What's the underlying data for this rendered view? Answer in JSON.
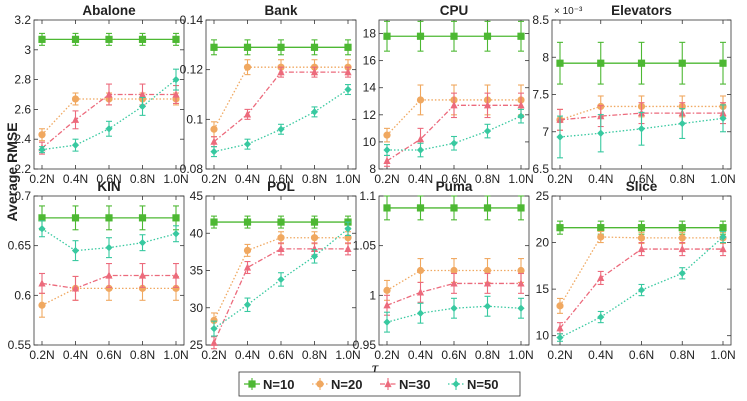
{
  "figure": {
    "ylabel": "Average RMSE",
    "xlabel": "τ",
    "legend_position": "bottom-center",
    "legend": [
      {
        "name": "N=10",
        "color": "#4db833",
        "marker": "square"
      },
      {
        "name": "N=20",
        "color": "#f0a860",
        "marker": "circle"
      },
      {
        "name": "N=30",
        "color": "#ec6a7c",
        "marker": "triangle"
      },
      {
        "name": "N=50",
        "color": "#38c9a0",
        "marker": "diamond"
      }
    ]
  },
  "chart_data": [
    {
      "type": "line",
      "title": "Abalone",
      "categories": [
        "0.2N",
        "0.4N",
        "0.6N",
        "0.8N",
        "1.0N"
      ],
      "ylim": [
        2.2,
        3.2
      ],
      "yticks": [
        "2.2",
        "2.4",
        "2.6",
        "2.8",
        "3",
        "3.2"
      ],
      "ytick_values": [
        2.2,
        2.4,
        2.6,
        2.8,
        3.0,
        3.2
      ],
      "series": [
        {
          "name": "N=10",
          "values": [
            3.07,
            3.07,
            3.07,
            3.07,
            3.07
          ],
          "err": [
            0.04,
            0.04,
            0.04,
            0.04,
            0.04
          ]
        },
        {
          "name": "N=20",
          "values": [
            2.43,
            2.67,
            2.67,
            2.67,
            2.67
          ],
          "err": [
            0.04,
            0.04,
            0.04,
            0.04,
            0.04
          ]
        },
        {
          "name": "N=30",
          "values": [
            2.34,
            2.53,
            2.7,
            2.7,
            2.7
          ],
          "err": [
            0.04,
            0.06,
            0.07,
            0.07,
            0.06
          ]
        },
        {
          "name": "N=50",
          "values": [
            2.33,
            2.36,
            2.47,
            2.62,
            2.8
          ],
          "err": [
            0.02,
            0.04,
            0.05,
            0.06,
            0.07
          ]
        }
      ]
    },
    {
      "type": "line",
      "title": "Bank",
      "categories": [
        "0.2N",
        "0.4N",
        "0.6N",
        "0.8N",
        "1.0N"
      ],
      "ylim": [
        0.08,
        0.14
      ],
      "yticks": [
        "0.08",
        "0.1",
        "0.12",
        "0.14"
      ],
      "ytick_values": [
        0.08,
        0.1,
        0.12,
        0.14
      ],
      "series": [
        {
          "name": "N=10",
          "values": [
            0.129,
            0.129,
            0.129,
            0.129,
            0.129
          ],
          "err": [
            0.003,
            0.003,
            0.003,
            0.003,
            0.003
          ]
        },
        {
          "name": "N=20",
          "values": [
            0.096,
            0.121,
            0.121,
            0.121,
            0.121
          ],
          "err": [
            0.003,
            0.003,
            0.003,
            0.003,
            0.003
          ]
        },
        {
          "name": "N=30",
          "values": [
            0.091,
            0.102,
            0.119,
            0.119,
            0.119
          ],
          "err": [
            0.002,
            0.002,
            0.002,
            0.002,
            0.002
          ]
        },
        {
          "name": "N=50",
          "values": [
            0.087,
            0.09,
            0.096,
            0.103,
            0.112
          ],
          "err": [
            0.002,
            0.002,
            0.002,
            0.002,
            0.002
          ]
        }
      ]
    },
    {
      "type": "line",
      "title": "CPU",
      "categories": [
        "0.2N",
        "0.4N",
        "0.6N",
        "0.8N",
        "1.0N"
      ],
      "ylim": [
        8,
        19
      ],
      "yticks": [
        "8",
        "10",
        "12",
        "14",
        "16",
        "18"
      ],
      "ytick_values": [
        8,
        10,
        12,
        14,
        16,
        18
      ],
      "series": [
        {
          "name": "N=10",
          "values": [
            17.8,
            17.8,
            17.8,
            17.8,
            17.8
          ],
          "err": [
            1.1,
            1.1,
            1.1,
            1.1,
            1.1
          ]
        },
        {
          "name": "N=20",
          "values": [
            10.5,
            13.1,
            13.1,
            13.1,
            13.1
          ],
          "err": [
            0.5,
            1.1,
            1.1,
            1.1,
            1.1
          ]
        },
        {
          "name": "N=30",
          "values": [
            8.6,
            10.2,
            12.7,
            12.7,
            12.7
          ],
          "err": [
            0.4,
            0.8,
            0.9,
            0.9,
            0.9
          ]
        },
        {
          "name": "N=50",
          "values": [
            9.4,
            9.4,
            9.9,
            10.8,
            11.9
          ],
          "err": [
            0.4,
            0.5,
            0.5,
            0.5,
            0.5
          ]
        }
      ]
    },
    {
      "type": "line",
      "title": "Elevators",
      "exponent_label": "× 10⁻³",
      "categories": [
        "0.2N",
        "0.4N",
        "0.6N",
        "0.8N",
        "1.0N"
      ],
      "ylim": [
        6.5,
        8.5
      ],
      "yticks": [
        "6.5",
        "7",
        "7.5",
        "8",
        "8.5"
      ],
      "ytick_values": [
        6.5,
        7.0,
        7.5,
        8.0,
        8.5
      ],
      "series": [
        {
          "name": "N=10",
          "values": [
            7.92,
            7.92,
            7.92,
            7.92,
            7.92
          ],
          "err": [
            0.28,
            0.28,
            0.28,
            0.28,
            0.28
          ]
        },
        {
          "name": "N=20",
          "values": [
            7.16,
            7.34,
            7.34,
            7.34,
            7.34
          ],
          "err": [
            0.14,
            0.14,
            0.14,
            0.14,
            0.14
          ]
        },
        {
          "name": "N=30",
          "values": [
            7.16,
            7.21,
            7.25,
            7.25,
            7.25
          ],
          "err": [
            0.14,
            0.14,
            0.14,
            0.14,
            0.14
          ]
        },
        {
          "name": "N=50",
          "values": [
            6.93,
            6.98,
            7.04,
            7.11,
            7.18
          ],
          "err": [
            0.28,
            0.25,
            0.22,
            0.2,
            0.18
          ]
        }
      ]
    },
    {
      "type": "line",
      "title": "KIN",
      "categories": [
        "0.2N",
        "0.4N",
        "0.6N",
        "0.8N",
        "1.0N"
      ],
      "ylim": [
        0.55,
        0.7
      ],
      "yticks": [
        "0.55",
        "0.6",
        "0.65",
        "0.7"
      ],
      "ytick_values": [
        0.55,
        0.6,
        0.65,
        0.7
      ],
      "series": [
        {
          "name": "N=10",
          "values": [
            0.678,
            0.678,
            0.678,
            0.678,
            0.678
          ],
          "err": [
            0.012,
            0.012,
            0.012,
            0.012,
            0.012
          ]
        },
        {
          "name": "N=20",
          "values": [
            0.59,
            0.607,
            0.607,
            0.607,
            0.607
          ],
          "err": [
            0.012,
            0.012,
            0.012,
            0.012,
            0.012
          ]
        },
        {
          "name": "N=30",
          "values": [
            0.612,
            0.607,
            0.62,
            0.62,
            0.62
          ],
          "err": [
            0.01,
            0.012,
            0.012,
            0.012,
            0.012
          ]
        },
        {
          "name": "N=50",
          "values": [
            0.667,
            0.645,
            0.648,
            0.653,
            0.662
          ],
          "err": [
            0.008,
            0.01,
            0.01,
            0.008,
            0.008
          ]
        }
      ]
    },
    {
      "type": "line",
      "title": "POL",
      "categories": [
        "0.2N",
        "0.4N",
        "0.6N",
        "0.8N",
        "1.0N"
      ],
      "ylim": [
        25,
        45
      ],
      "yticks": [
        "25",
        "30",
        "35",
        "40",
        "45"
      ],
      "ytick_values": [
        25,
        30,
        35,
        40,
        45
      ],
      "series": [
        {
          "name": "N=10",
          "values": [
            41.5,
            41.5,
            41.5,
            41.5,
            41.5
          ],
          "err": [
            0.8,
            0.8,
            0.8,
            0.8,
            0.8
          ]
        },
        {
          "name": "N=20",
          "values": [
            28.3,
            37.7,
            39.4,
            39.4,
            39.4
          ],
          "err": [
            1.0,
            0.8,
            0.8,
            0.8,
            0.8
          ]
        },
        {
          "name": "N=30",
          "values": [
            25.3,
            35.4,
            37.9,
            37.9,
            37.9
          ],
          "err": [
            0.8,
            0.8,
            0.8,
            0.8,
            0.8
          ]
        },
        {
          "name": "N=50",
          "values": [
            27.2,
            30.4,
            33.8,
            36.9,
            40.6
          ],
          "err": [
            1.0,
            0.9,
            0.9,
            0.9,
            0.9
          ]
        }
      ]
    },
    {
      "type": "line",
      "title": "Puma",
      "categories": [
        "0.2N",
        "0.4N",
        "0.6N",
        "0.8N",
        "1.0N"
      ],
      "ylim": [
        0.95,
        1.1
      ],
      "yticks": [
        "0.95",
        "1",
        "1.05",
        "1.1"
      ],
      "ytick_values": [
        0.95,
        1.0,
        1.05,
        1.1
      ],
      "series": [
        {
          "name": "N=10",
          "values": [
            1.088,
            1.088,
            1.088,
            1.088,
            1.088
          ],
          "err": [
            0.012,
            0.012,
            0.012,
            0.012,
            0.012
          ]
        },
        {
          "name": "N=20",
          "values": [
            1.005,
            1.025,
            1.025,
            1.025,
            1.025
          ],
          "err": [
            0.01,
            0.012,
            0.012,
            0.012,
            0.012
          ]
        },
        {
          "name": "N=30",
          "values": [
            0.99,
            1.003,
            1.012,
            1.012,
            1.012
          ],
          "err": [
            0.01,
            0.01,
            0.01,
            0.01,
            0.01
          ]
        },
        {
          "name": "N=50",
          "values": [
            0.973,
            0.982,
            0.987,
            0.989,
            0.987
          ],
          "err": [
            0.01,
            0.01,
            0.01,
            0.01,
            0.01
          ]
        }
      ]
    },
    {
      "type": "line",
      "title": "Slice",
      "categories": [
        "0.2N",
        "0.4N",
        "0.6N",
        "0.8N",
        "1.0N"
      ],
      "ylim": [
        9,
        25
      ],
      "yticks": [
        "10",
        "15",
        "20",
        "25"
      ],
      "ytick_values": [
        10,
        15,
        20,
        25
      ],
      "series": [
        {
          "name": "N=10",
          "values": [
            21.6,
            21.6,
            21.6,
            21.6,
            21.6
          ],
          "err": [
            0.7,
            0.7,
            0.7,
            0.7,
            0.7
          ]
        },
        {
          "name": "N=20",
          "values": [
            13.2,
            20.6,
            20.5,
            20.5,
            20.5
          ],
          "err": [
            0.8,
            0.6,
            0.6,
            0.6,
            0.6
          ]
        },
        {
          "name": "N=30",
          "values": [
            10.8,
            16.2,
            19.3,
            19.3,
            19.3
          ],
          "err": [
            0.6,
            0.7,
            0.7,
            0.7,
            0.7
          ]
        },
        {
          "name": "N=50",
          "values": [
            9.8,
            12.0,
            14.9,
            16.7,
            20.6
          ],
          "err": [
            0.4,
            0.6,
            0.6,
            0.6,
            0.6
          ]
        }
      ]
    }
  ]
}
